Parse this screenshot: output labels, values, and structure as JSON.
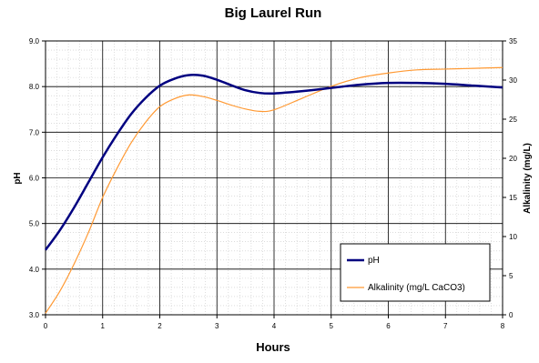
{
  "chart_data": {
    "type": "line",
    "title": "Big Laurel Run",
    "xlabel": "Hours",
    "ylabel_left": "pH",
    "ylabel_right": "Alkalinity (mg/L)",
    "xlim": [
      0,
      8
    ],
    "ylim_left": [
      3.0,
      9.0
    ],
    "ylim_right": [
      0,
      35
    ],
    "x_ticks": [
      "0",
      "1",
      "2",
      "3",
      "4",
      "5",
      "6",
      "7",
      "8"
    ],
    "y_left_ticks": [
      "3.0",
      "4.0",
      "5.0",
      "6.0",
      "7.0",
      "8.0",
      "9.0"
    ],
    "y_right_ticks": [
      "0",
      "5",
      "10",
      "15",
      "20",
      "25",
      "30",
      "35"
    ],
    "grid": true,
    "legend_position": "bottom-right",
    "series": [
      {
        "name": "pH",
        "axis": "left",
        "color": "#000080",
        "x": [
          0,
          0.25,
          0.5,
          0.75,
          1.0,
          1.25,
          1.5,
          1.75,
          2.0,
          2.25,
          2.5,
          2.75,
          3.0,
          3.25,
          3.5,
          3.75,
          4.0,
          4.5,
          5.0,
          5.5,
          6.0,
          6.5,
          7.0,
          7.5,
          8.0
        ],
        "y": [
          4.42,
          4.85,
          5.35,
          5.9,
          6.45,
          6.95,
          7.4,
          7.75,
          8.02,
          8.17,
          8.25,
          8.24,
          8.15,
          8.03,
          7.92,
          7.86,
          7.85,
          7.9,
          7.97,
          8.04,
          8.08,
          8.08,
          8.06,
          8.02,
          7.98
        ]
      },
      {
        "name": "Alkalinity (mg/L CaCO3)",
        "axis": "right",
        "color": "#FF9933",
        "x": [
          0,
          0.25,
          0.5,
          0.75,
          1.0,
          1.25,
          1.5,
          1.75,
          2.0,
          2.25,
          2.5,
          2.75,
          3.0,
          3.25,
          3.5,
          3.75,
          4.0,
          4.5,
          5.0,
          5.5,
          6.0,
          6.5,
          7.0,
          7.5,
          8.0
        ],
        "y": [
          0.2,
          3.0,
          6.5,
          10.5,
          15.0,
          18.7,
          22.0,
          24.6,
          26.6,
          27.6,
          28.1,
          27.9,
          27.4,
          26.8,
          26.3,
          26.0,
          26.2,
          27.7,
          29.2,
          30.3,
          30.9,
          31.3,
          31.4,
          31.5,
          31.6
        ]
      }
    ]
  }
}
